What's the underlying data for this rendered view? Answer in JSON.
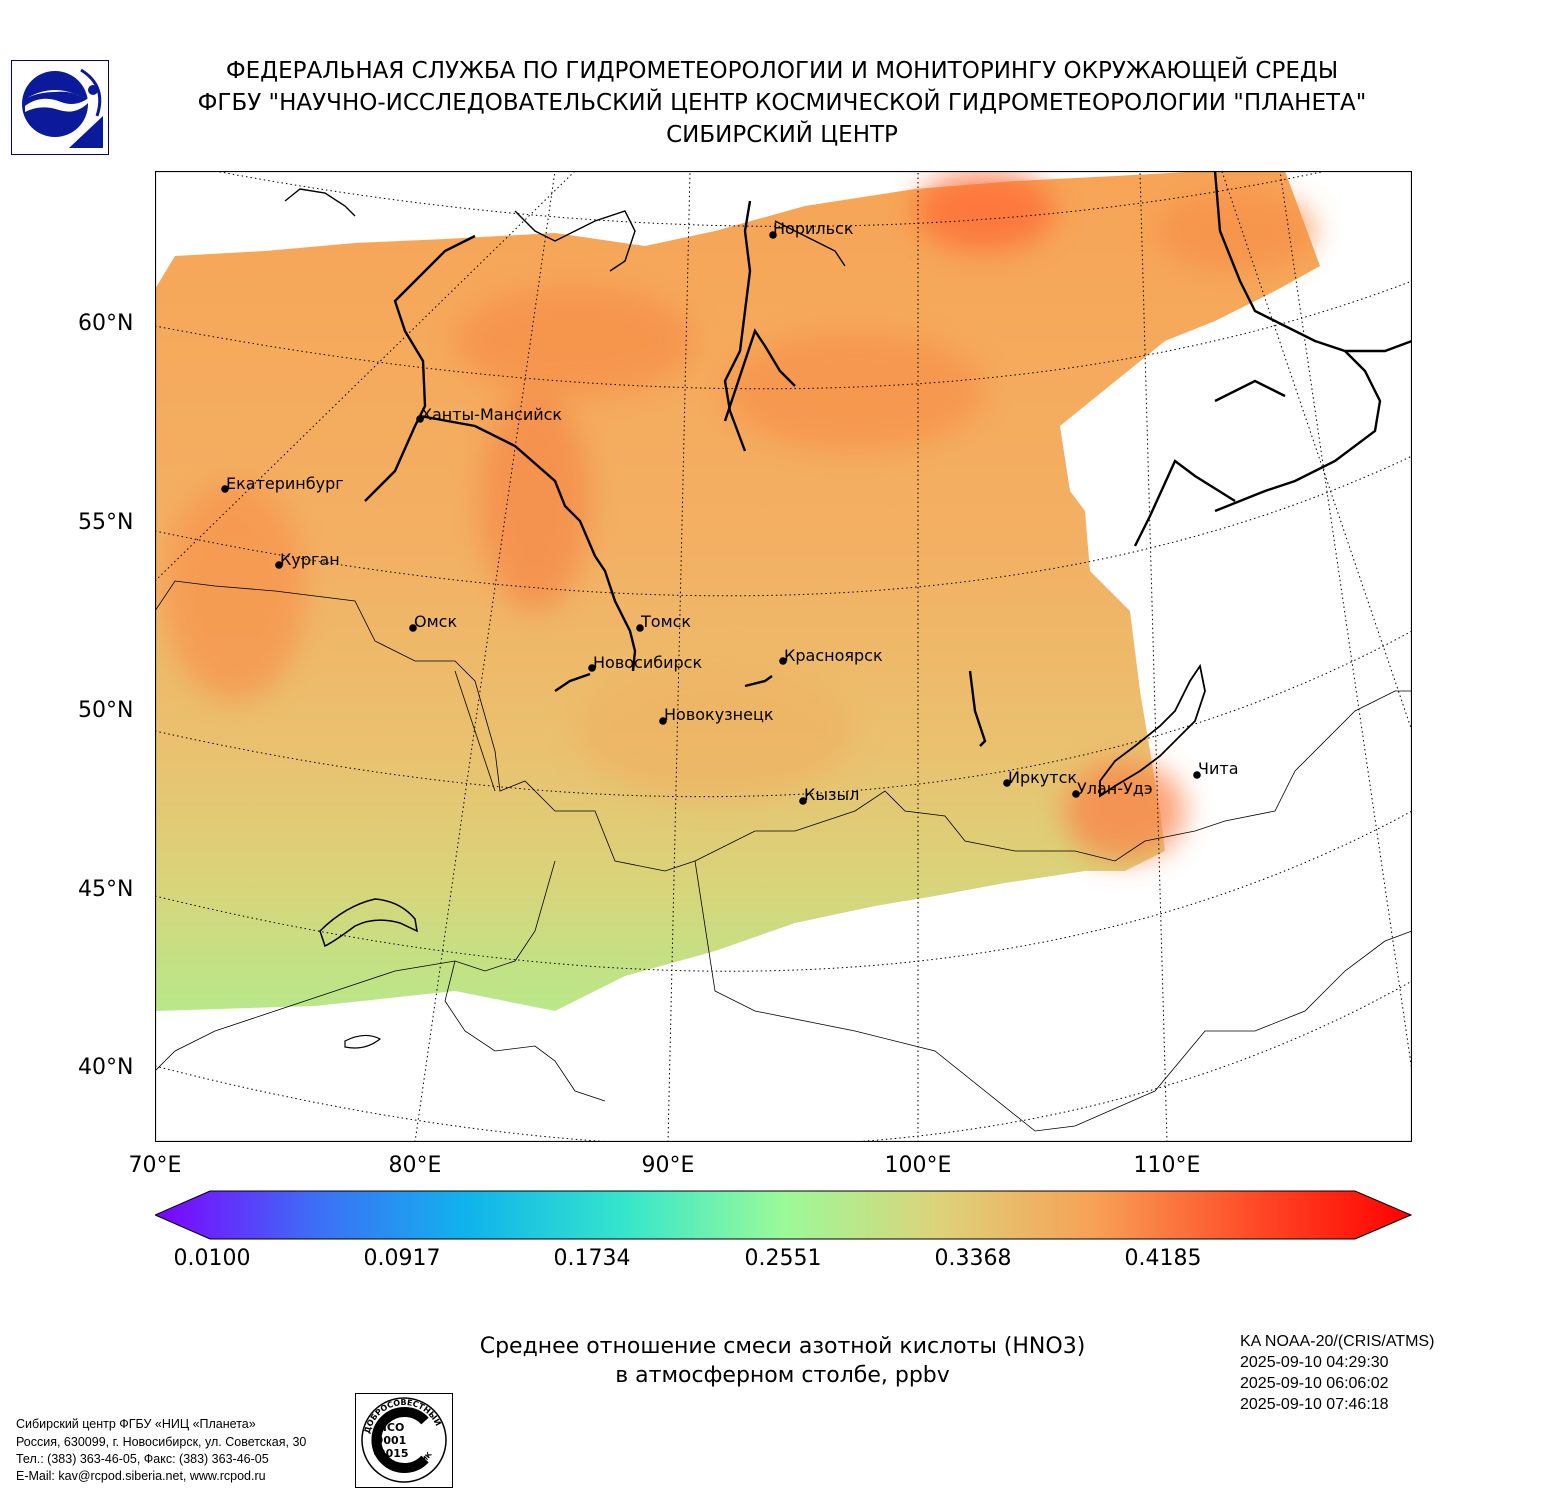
{
  "header": {
    "line1": "ФЕДЕРАЛЬНАЯ СЛУЖБА ПО ГИДРОМЕТЕОРОЛОГИИ И МОНИТОРИНГУ ОКРУЖАЮЩЕЙ СРЕДЫ",
    "line2": "ФГБУ \"НАУЧНО-ИССЛЕДОВАТЕЛЬСКИЙ ЦЕНТР КОСМИЧЕСКОЙ ГИДРОМЕТЕОРОЛОГИИ \"ПЛАНЕТА\"",
    "line3": "СИБИРСКИЙ ЦЕНТР"
  },
  "map": {
    "lat_labels": [
      "60°N",
      "55°N",
      "50°N",
      "45°N",
      "40°N"
    ],
    "lon_labels": [
      "70°E",
      "80°E",
      "90°E",
      "100°E",
      "110°E"
    ],
    "cities": [
      {
        "name": "Норильск"
      },
      {
        "name": "Ханты-Мансийск"
      },
      {
        "name": "Екатеринбург"
      },
      {
        "name": "Курган"
      },
      {
        "name": "Омск"
      },
      {
        "name": "Томск"
      },
      {
        "name": "Новосибирск"
      },
      {
        "name": "Красноярск"
      },
      {
        "name": "Новокузнецк"
      },
      {
        "name": "Иркутск"
      },
      {
        "name": "Улан-Удэ"
      },
      {
        "name": "Чита"
      },
      {
        "name": "Кызыл"
      }
    ]
  },
  "colorbar": {
    "ticks": [
      "0.0100",
      "0.0917",
      "0.1734",
      "0.2551",
      "0.3368",
      "0.4185"
    ],
    "colors": [
      "#7f00ff",
      "#3f6cf7",
      "#10b4ec",
      "#36e6cb",
      "#9bfa99",
      "#ddd27a",
      "#f7a055",
      "#ff4a27",
      "#ff0000"
    ]
  },
  "caption": {
    "line1": "Среднее отношение смеси азотной кислоты (HNO3)",
    "line2": "в атмосферном столбе, ppbv"
  },
  "satellite": {
    "name": "KA NOAA-20/(CRIS/ATMS)",
    "times": [
      "2025-09-10 04:29:30",
      "2025-09-10 06:06:02",
      "2025-09-10 07:46:18"
    ]
  },
  "footer": {
    "lines": [
      "Сибирский центр ФГБУ «НИЦ «Планета»",
      "Россия, 630099, г. Новосибирск, ул. Советская, 30",
      "Тел.: (383) 363-46-05, Факс: (383) 363-46-05",
      "E-Mail: kav@rcpod.siberia.net, www.rcpod.ru"
    ]
  },
  "iso_stamp": {
    "top_text": "ДОБРОСОВЕСТНЫЙ",
    "line1": "ИСО",
    "line2": "9001",
    "line3": "-2015",
    "bottom_text": "ПОСТАВЩИК"
  }
}
